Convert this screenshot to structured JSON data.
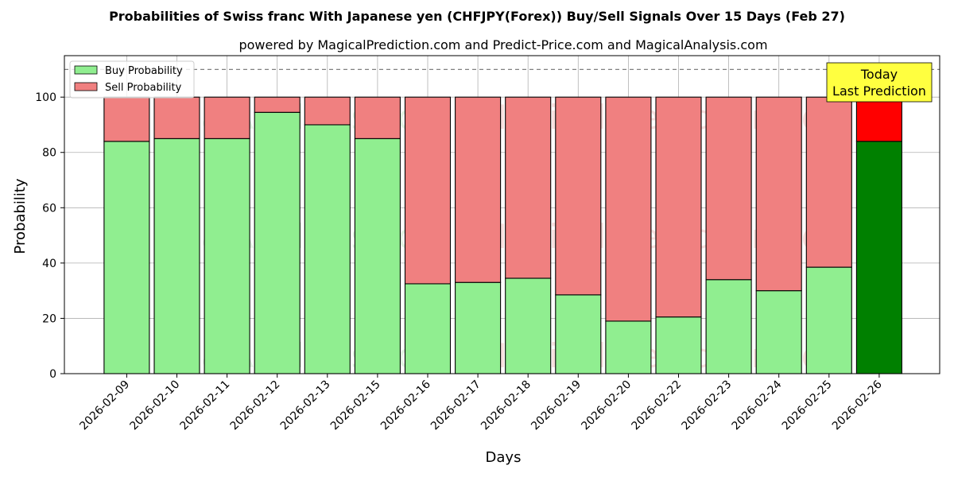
{
  "chart_data": {
    "type": "bar",
    "stacked": true,
    "title": "Probabilities of Swiss franc With Japanese yen (CHFJPY(Forex)) Buy/Sell Signals Over 15 Days (Feb 27)",
    "subtitle": "powered by MagicalPrediction.com and Predict-Price.com and MagicalAnalysis.com",
    "xlabel": "Days",
    "ylabel": "Probability",
    "ylim": [
      0,
      115
    ],
    "yticks": [
      0,
      20,
      40,
      60,
      80,
      100
    ],
    "grid": true,
    "legend_position": "top-left",
    "reference_line": 110,
    "categories": [
      "2026-02-09",
      "2026-02-10",
      "2026-02-11",
      "2026-02-12",
      "2026-02-13",
      "2026-02-15",
      "2026-02-16",
      "2026-02-17",
      "2026-02-18",
      "2026-02-19",
      "2026-02-20",
      "2026-02-22",
      "2026-02-23",
      "2026-02-24",
      "2026-02-25",
      "2026-02-26"
    ],
    "series": [
      {
        "name": "Buy Probability",
        "color": "#90ee90",
        "highlight_color": "#008000",
        "values": [
          84,
          85,
          85,
          94.5,
          90,
          85,
          32.5,
          33,
          34.5,
          28.5,
          19,
          20.5,
          34,
          30,
          38.5,
          84
        ]
      },
      {
        "name": "Sell Probability",
        "color": "#f08080",
        "highlight_color": "#ff0000",
        "values": [
          16,
          15,
          15,
          5.5,
          10,
          15,
          67.5,
          67,
          65.5,
          71.5,
          81,
          79.5,
          66,
          70,
          61.5,
          16
        ]
      }
    ],
    "highlight_index": 15,
    "annotation": {
      "lines": [
        "Today",
        "Last Prediction"
      ],
      "background": "#ffff40"
    },
    "watermarks": [
      "MagicalAnalysis.com",
      "MagicalPrediction.com"
    ]
  }
}
